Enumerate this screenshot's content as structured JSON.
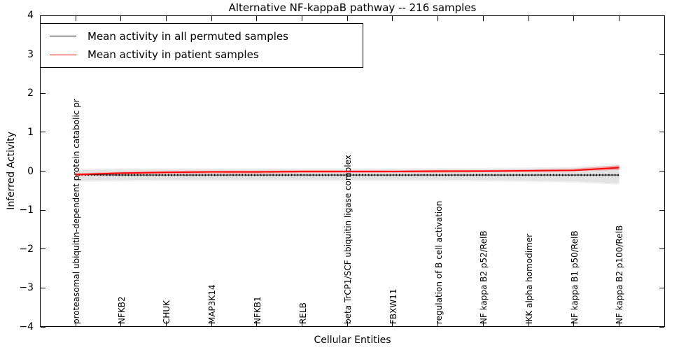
{
  "figure": {
    "title": "Alternative NF-kappaB pathway -- 216 samples",
    "xlabel": "Cellular Entities",
    "ylabel": "Inferred Activity"
  },
  "chart_data": {
    "type": "line",
    "title": "Alternative NF-kappaB pathway -- 216 samples",
    "xlabel": "Cellular Entities",
    "ylabel": "Inferred Activity",
    "ylim": [
      -4,
      4
    ],
    "yticks": [
      4,
      3,
      2,
      1,
      0,
      -1,
      -2,
      -3,
      -4
    ],
    "grid": false,
    "legend_position": "upper left",
    "categories": [
      "proteasomal ubiquitin-dependent protein catabolic pr",
      "NFKB2",
      "CHUK",
      "MAP3K14",
      "NFKB1",
      "RELB",
      "beta TrCP1/SCF ubiquitin ligase complex",
      "FBXW11",
      "regulation of B cell activation",
      "NF kappa B2 p52/RelB",
      "IKK alpha homodimer",
      "NF kappa B1 p50/RelB",
      "NF kappa B2 p100/RelB"
    ],
    "series": [
      {
        "name": "Mean activity in all permuted samples",
        "color": "#000000",
        "style": "solid with dense plus markers",
        "values": [
          -0.09,
          -0.1,
          -0.1,
          -0.1,
          -0.1,
          -0.1,
          -0.1,
          -0.1,
          -0.1,
          -0.1,
          -0.1,
          -0.1,
          -0.1
        ]
      },
      {
        "name": "Mean activity in patient samples",
        "color": "#ff0000",
        "style": "solid",
        "values": [
          -0.09,
          -0.05,
          -0.03,
          -0.02,
          -0.02,
          -0.01,
          -0.01,
          -0.01,
          0.0,
          0.0,
          0.01,
          0.02,
          0.09
        ]
      }
    ],
    "bands": [
      {
        "name": "permuted-samples-range",
        "color": "#e3e3e3",
        "halo_color": "#f1f1f1",
        "upper": [
          0.03,
          0.04,
          0.04,
          0.04,
          0.04,
          0.04,
          0.04,
          0.04,
          0.05,
          0.05,
          0.06,
          0.08,
          0.15
        ],
        "lower": [
          -0.24,
          -0.23,
          -0.22,
          -0.22,
          -0.22,
          -0.22,
          -0.22,
          -0.22,
          -0.22,
          -0.23,
          -0.24,
          -0.26,
          -0.31
        ]
      },
      {
        "name": "patient-samples-range",
        "color": "#f4a8a8",
        "upper": [
          -0.05,
          -0.02,
          0.0,
          0.01,
          0.01,
          0.02,
          0.02,
          0.02,
          0.03,
          0.03,
          0.04,
          0.06,
          0.15
        ],
        "lower": [
          -0.13,
          -0.09,
          -0.07,
          -0.06,
          -0.06,
          -0.05,
          -0.05,
          -0.04,
          -0.04,
          -0.03,
          -0.02,
          0.0,
          0.03
        ]
      }
    ]
  }
}
